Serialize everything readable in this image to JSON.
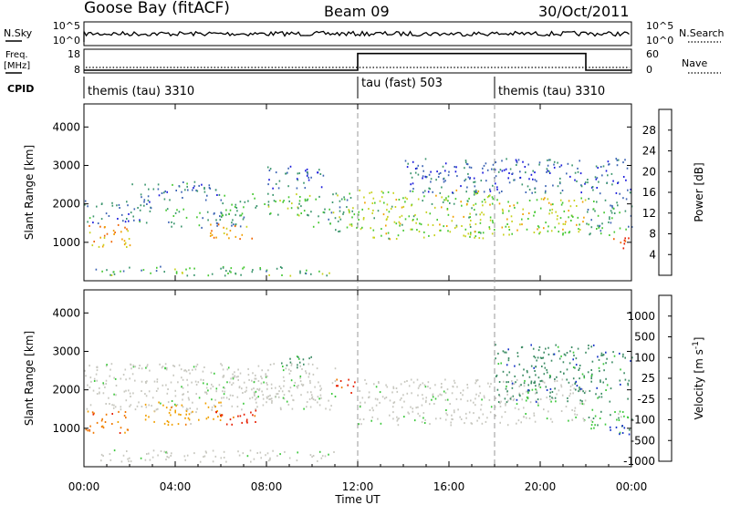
{
  "header": {
    "station": "Goose Bay (fitACF)",
    "beam": "Beam 09",
    "date": "30/Oct/2011"
  },
  "noise_panel": {
    "left_label": "N.Sky",
    "right_label": "N.Search",
    "left_ticks": [
      "10^5",
      "10^0"
    ],
    "right_ticks": [
      "10^5",
      "10^0"
    ]
  },
  "freq_panel": {
    "left_label_line1": "Freq.",
    "left_label_line2": "[MHz]",
    "right_label": "Nave",
    "left_ticks": [
      "18",
      "8"
    ],
    "right_ticks": [
      "60",
      "0"
    ],
    "nave_levels": [
      {
        "start": 0,
        "end": 12,
        "value": 0
      },
      {
        "start": 12,
        "end": 22,
        "value": 55
      },
      {
        "start": 22,
        "end": 24,
        "value": 0
      }
    ]
  },
  "cpid_panel": {
    "label": "CPID",
    "segments": [
      {
        "name": "themis (tau) 3310",
        "start": 0,
        "end": 12
      },
      {
        "name": "tau (fast) 503",
        "start": 12,
        "end": 18
      },
      {
        "name": "themis (tau) 3310",
        "start": 18,
        "end": 24
      }
    ]
  },
  "chart_data": [
    {
      "type": "heatmap",
      "name": "power",
      "ylabel": "Slant Range [km]",
      "xlabel": "Time UT",
      "xlim": [
        0,
        24
      ],
      "ylim": [
        0,
        4600
      ],
      "y_ticks": [
        1000,
        2000,
        3000,
        4000
      ],
      "colorbar_label": "Power [dB]",
      "colorbar_ticks": [
        "4",
        "8",
        "12",
        "16",
        "20",
        "24",
        "28"
      ],
      "colorbar_colors": [
        "#1a1adc",
        "#3c64b4",
        "#3c966e",
        "#46c832",
        "#c8d21e",
        "#f0a000",
        "#f06400",
        "#e61e00"
      ],
      "colorbar_range": [
        0,
        32
      ],
      "scatter_bands": [
        {
          "t0": 0,
          "t1": 2,
          "r0": 900,
          "r1": 1500,
          "level": 22
        },
        {
          "t0": 0,
          "t1": 3,
          "r0": 1500,
          "r1": 2100,
          "level": 8
        },
        {
          "t0": 2,
          "t1": 6,
          "r0": 2100,
          "r1": 2600,
          "level": 8
        },
        {
          "t0": 3.5,
          "t1": 7,
          "r0": 1400,
          "r1": 1900,
          "level": 10
        },
        {
          "t0": 5.5,
          "t1": 7.5,
          "r0": 1100,
          "r1": 1500,
          "level": 22
        },
        {
          "t0": 6,
          "t1": 10,
          "r0": 1700,
          "r1": 2300,
          "level": 13
        },
        {
          "t0": 8,
          "t1": 10.5,
          "r0": 2400,
          "r1": 3000,
          "level": 6
        },
        {
          "t0": 10,
          "t1": 12,
          "r0": 1300,
          "r1": 2300,
          "level": 12
        },
        {
          "t0": 12,
          "t1": 18,
          "r0": 1100,
          "r1": 2400,
          "level": 16
        },
        {
          "t0": 18,
          "t1": 22,
          "r0": 1200,
          "r1": 2200,
          "level": 17
        },
        {
          "t0": 22,
          "t1": 24,
          "r0": 1200,
          "r1": 2300,
          "level": 10
        },
        {
          "t0": 23,
          "t1": 24,
          "r0": 850,
          "r1": 1150,
          "level": 28
        },
        {
          "t0": 14,
          "t1": 24,
          "r0": 2300,
          "r1": 3200,
          "level": 6
        },
        {
          "t0": 0.5,
          "t1": 11,
          "r0": 150,
          "r1": 400,
          "level": 12
        }
      ],
      "x_ticks": [
        "00:00",
        "04:00",
        "08:00",
        "12:00",
        "16:00",
        "20:00",
        "00:00"
      ]
    },
    {
      "type": "heatmap",
      "name": "velocity",
      "ylabel": "Slant Range [km]",
      "xlabel": "Time UT",
      "xlim": [
        0,
        24
      ],
      "ylim": [
        0,
        4600
      ],
      "y_ticks": [
        1000,
        2000,
        3000,
        4000
      ],
      "colorbar_label": "Velocity [m s^-1]",
      "colorbar_ticks": [
        "1000",
        "500",
        "100",
        "25",
        "-25",
        "-100",
        "-500",
        "-1000"
      ],
      "colorbar_colors": [
        "#1432c8",
        "#3c8c64",
        "#3cc83c",
        "#c8c8c0",
        "#c8c8c0",
        "#f0a000",
        "#f07800",
        "#e61e00"
      ],
      "scatter_bands": [
        {
          "t0": 0,
          "t1": 2,
          "r0": 900,
          "r1": 1500,
          "level": 6
        },
        {
          "t0": 0,
          "t1": 11,
          "r0": 1500,
          "r1": 2700,
          "level": 3
        },
        {
          "t0": 2.5,
          "t1": 6,
          "r0": 1100,
          "r1": 1700,
          "level": 5
        },
        {
          "t0": 5.5,
          "t1": 7.5,
          "r0": 1100,
          "r1": 1500,
          "level": 7
        },
        {
          "t0": 6,
          "t1": 10,
          "r0": 1800,
          "r1": 2400,
          "level": 3
        },
        {
          "t0": 8.5,
          "t1": 10,
          "r0": 2600,
          "r1": 3000,
          "level": 1
        },
        {
          "t0": 11,
          "t1": 12,
          "r0": 1900,
          "r1": 2300,
          "level": 7
        },
        {
          "t0": 12,
          "t1": 22,
          "r0": 1100,
          "r1": 2300,
          "level": 3
        },
        {
          "t0": 22,
          "t1": 24,
          "r0": 900,
          "r1": 1500,
          "level": 2
        },
        {
          "t0": 23,
          "t1": 24,
          "r0": 800,
          "r1": 1100,
          "level": 0
        },
        {
          "t0": 18,
          "t1": 24,
          "r0": 1700,
          "r1": 3200,
          "level": 1
        },
        {
          "t0": 0.5,
          "t1": 11,
          "r0": 150,
          "r1": 450,
          "level": 3
        }
      ],
      "x_ticks": [
        "00:00",
        "04:00",
        "08:00",
        "12:00",
        "16:00",
        "20:00",
        "00:00"
      ]
    }
  ]
}
